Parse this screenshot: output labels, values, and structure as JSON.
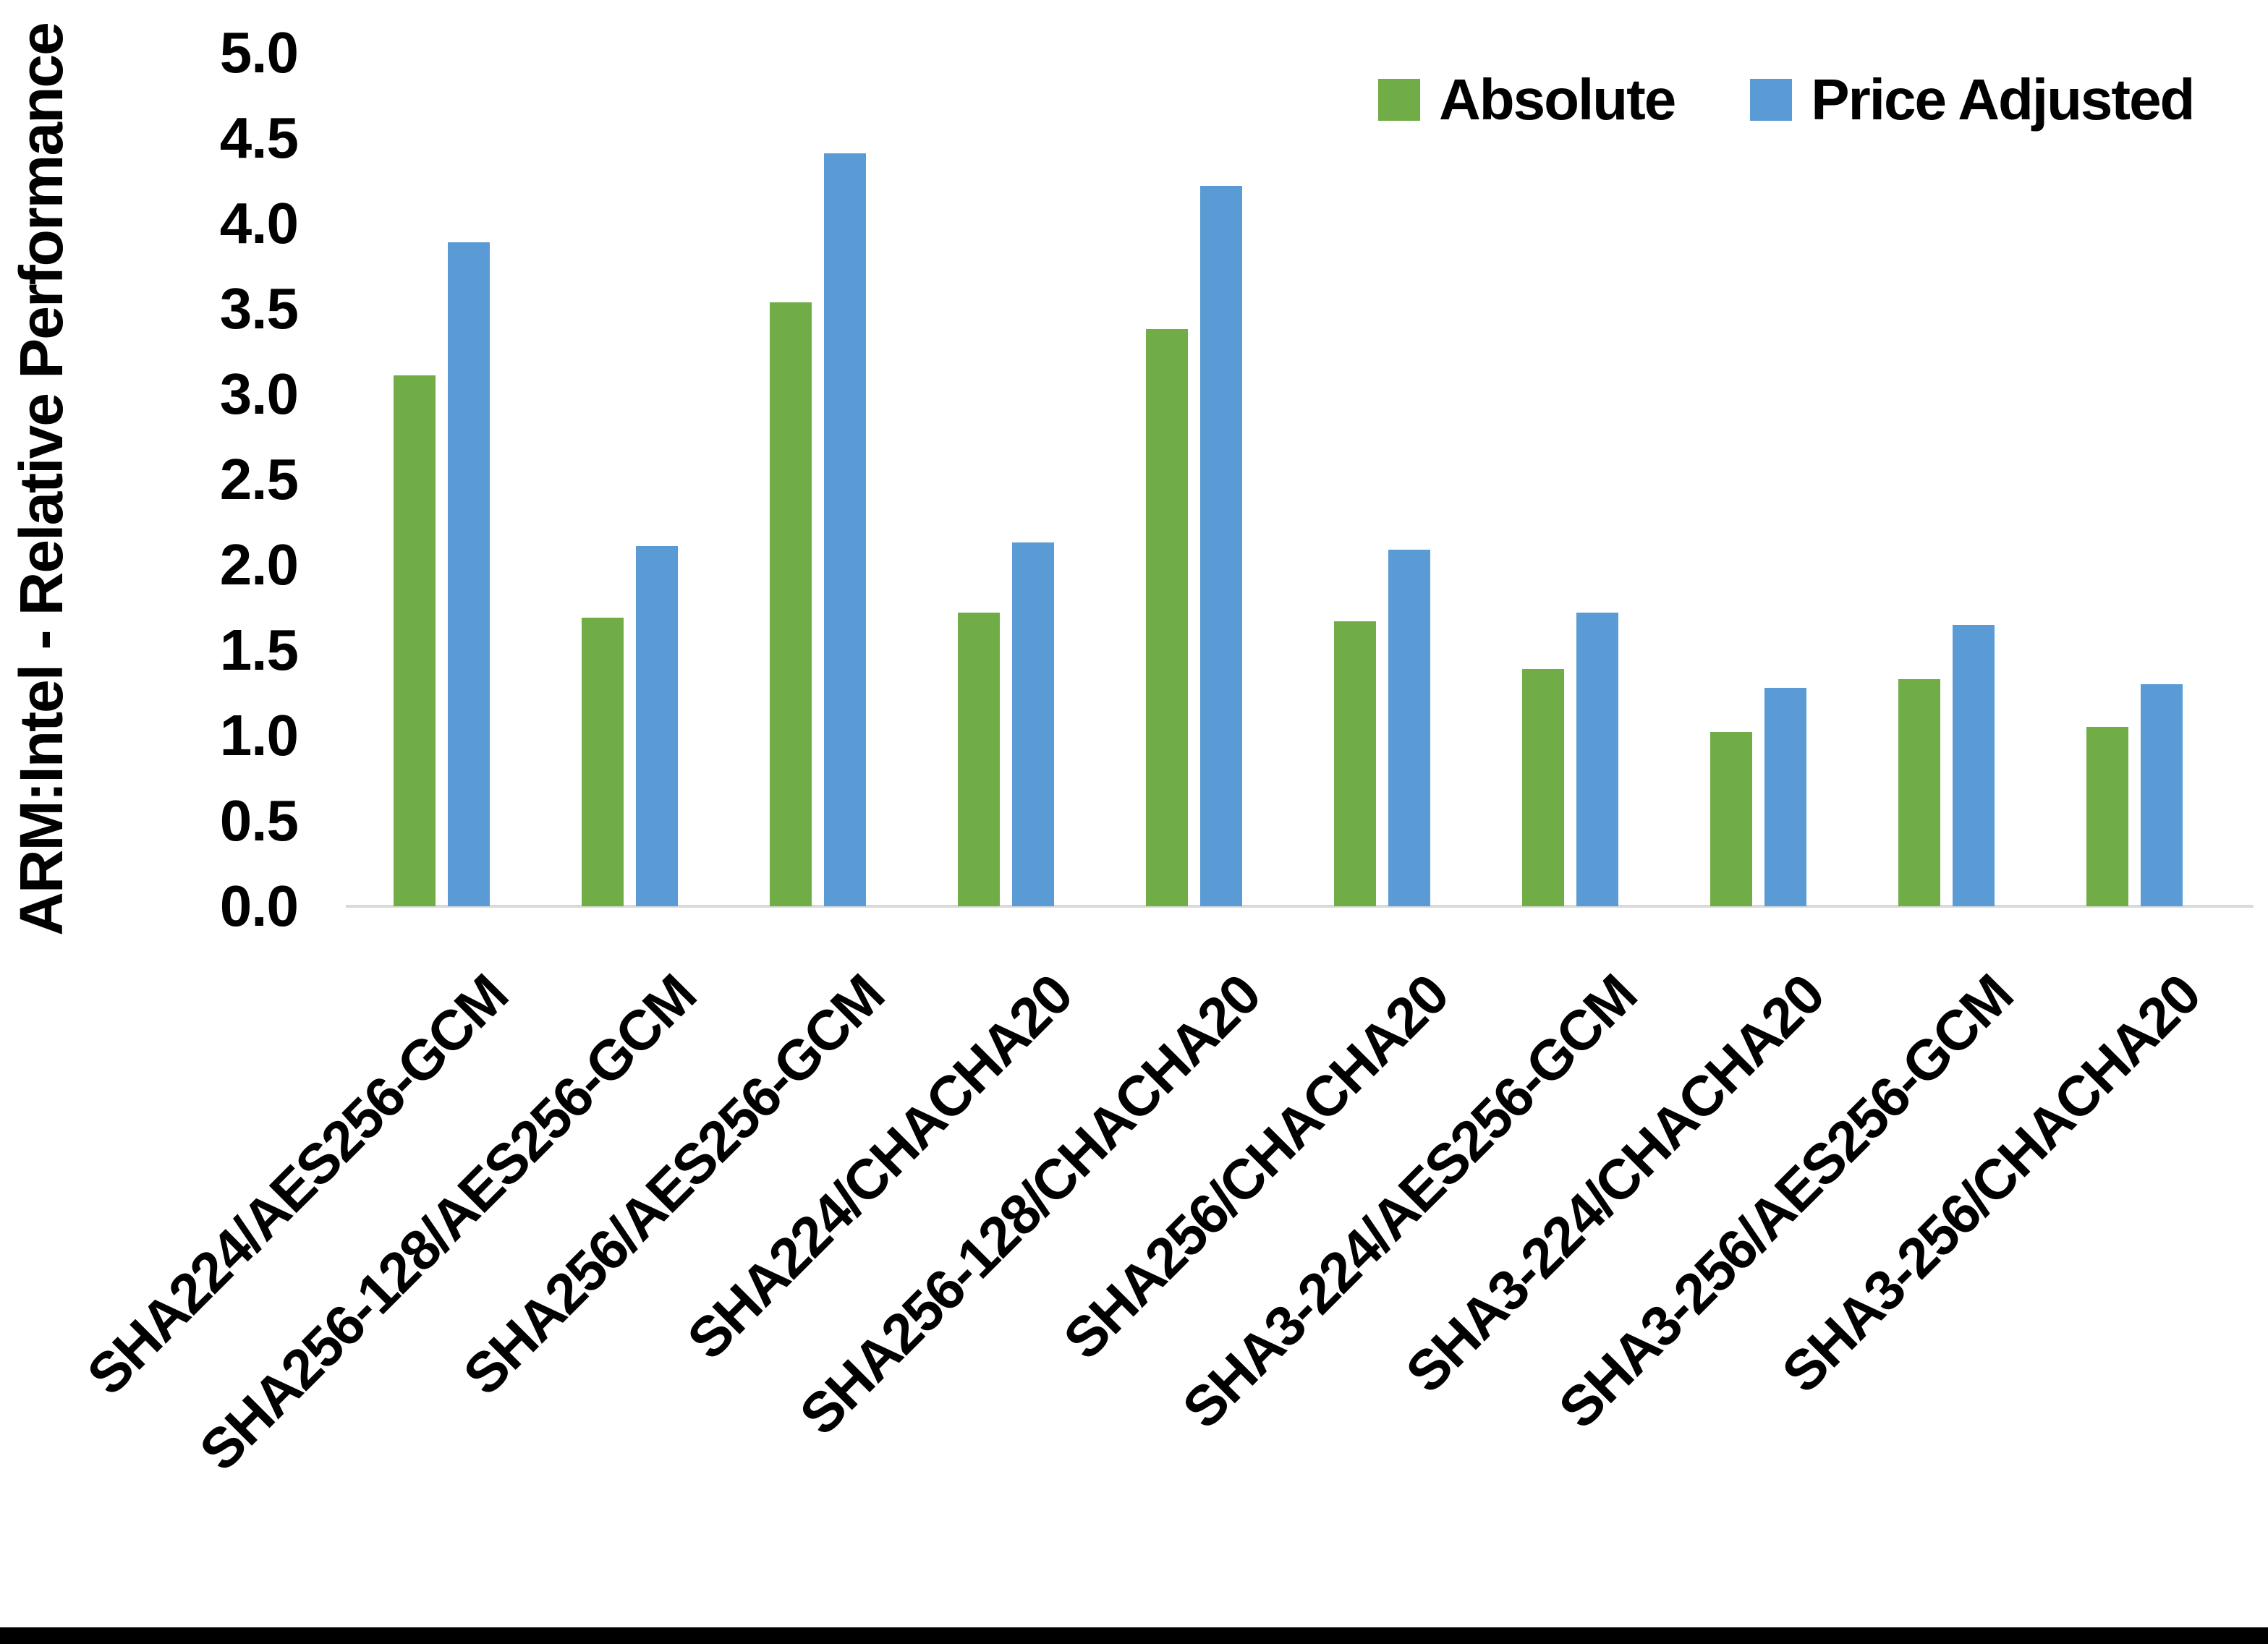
{
  "chart_data": {
    "type": "bar",
    "title": "",
    "xlabel": "",
    "ylabel": "ARM:Intel - Relative Performance",
    "ylim": [
      0,
      5
    ],
    "ytick_step": 0.5,
    "yticks": [
      "0.0",
      "0.5",
      "1.0",
      "1.5",
      "2.0",
      "2.5",
      "3.0",
      "3.5",
      "4.0",
      "4.5",
      "5.0"
    ],
    "grid": false,
    "legend_position": "top-right",
    "categories": [
      "SHA224/AES256-GCM",
      "SHA256-128/AES256-GCM",
      "SHA256/AES256-GCM",
      "SHA224/CHACHA20",
      "SHA256-128/CHACHA20",
      "SHA256/CHACHA20",
      "SHA3-224/AES256-GCM",
      "SHA3-224/CHACHA20",
      "SHA3-256/AES256-GCM",
      "SHA3-256/CHACHA20"
    ],
    "series": [
      {
        "name": "Absolute",
        "color": "#70AD47",
        "values": [
          3.11,
          1.69,
          3.54,
          1.72,
          3.38,
          1.67,
          1.39,
          1.02,
          1.33,
          1.05
        ]
      },
      {
        "name": "Price Adjusted",
        "color": "#5B9BD5",
        "values": [
          3.89,
          2.11,
          4.41,
          2.13,
          4.22,
          2.09,
          1.72,
          1.28,
          1.65,
          1.3
        ]
      }
    ],
    "baseline_color": "#D9D9D9"
  },
  "frame": {
    "bottom_bar_color": "#000000"
  }
}
